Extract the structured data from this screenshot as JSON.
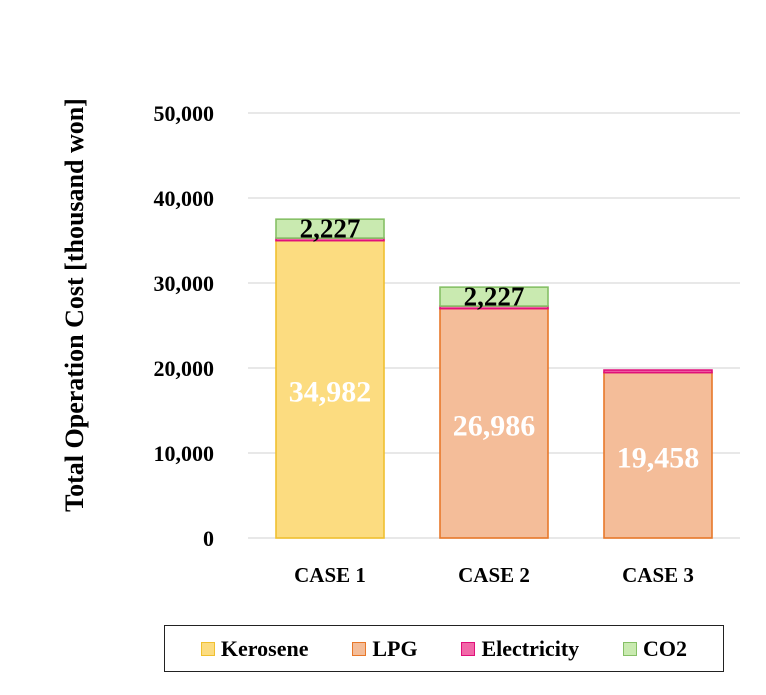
{
  "chart_data": {
    "type": "bar",
    "stacked": true,
    "categories": [
      "CASE 1",
      "CASE 2",
      "CASE 3"
    ],
    "series": [
      {
        "name": "Kerosene",
        "values": [
          34982,
          0,
          0
        ],
        "color": "#fcdc80",
        "stroke": "#f0c030",
        "labels": [
          "34,982",
          "",
          ""
        ],
        "label_color": "white"
      },
      {
        "name": "LPG",
        "values": [
          0,
          26986,
          19458
        ],
        "color": "#f4bd99",
        "stroke": "#e8782a",
        "labels": [
          "",
          "26,986",
          "19,458"
        ],
        "label_color": "white"
      },
      {
        "name": "Electricity",
        "values": [
          300,
          300,
          300
        ],
        "color": "#f268a8",
        "stroke": "#e0107a",
        "labels": [
          "",
          "",
          ""
        ],
        "label_color": "black"
      },
      {
        "name": "CO2",
        "values": [
          2227,
          2227,
          0
        ],
        "color": "#c9eab0",
        "stroke": "#86c066",
        "labels": [
          "2,227",
          "2,227",
          ""
        ],
        "label_color": "black"
      }
    ],
    "ylabel": "Total Operation Cost [thousand won]",
    "ylim": [
      0,
      50000
    ],
    "yticks": [
      0,
      10000,
      20000,
      30000,
      40000,
      50000
    ],
    "ytick_labels": [
      "0",
      "10,000",
      "20,000",
      "30,000",
      "40,000",
      "50,000"
    ],
    "grid": true,
    "legend_position": "bottom"
  }
}
